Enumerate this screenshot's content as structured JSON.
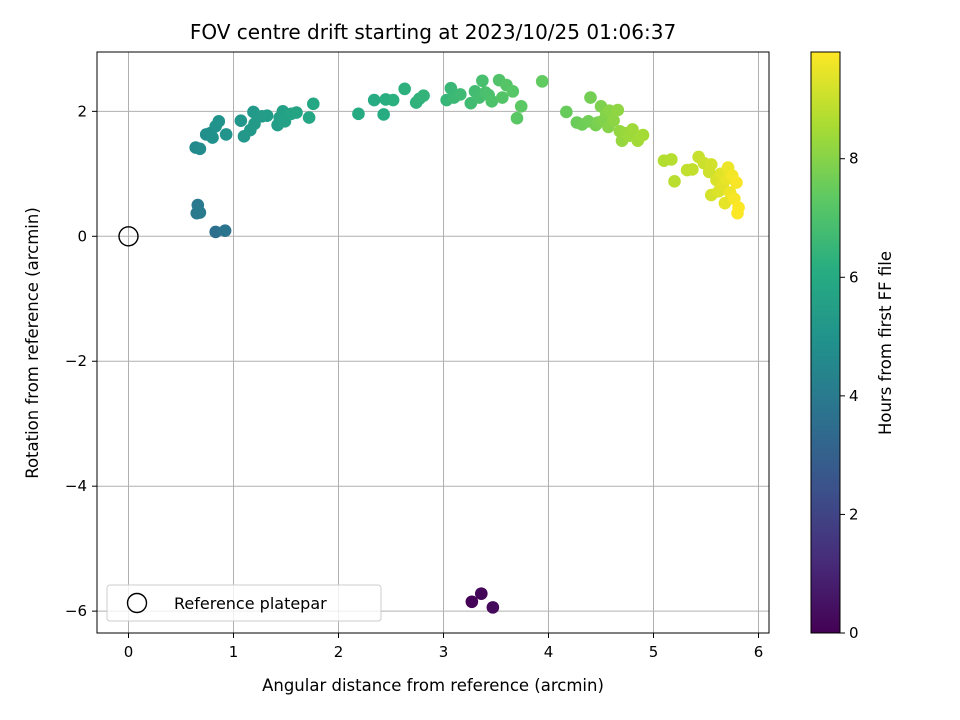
{
  "chart_data": {
    "type": "scatter",
    "title": "FOV centre drift starting at 2023/10/25 01:06:37",
    "xlabel": "Angular distance from reference (arcmin)",
    "ylabel": "Rotation from reference (arcmin)",
    "xlim": [
      -0.3,
      6.1
    ],
    "ylim": [
      -6.35,
      2.95
    ],
    "xticks": [
      0,
      1,
      2,
      3,
      4,
      5,
      6
    ],
    "yticks": [
      -6,
      -4,
      -2,
      0,
      2
    ],
    "xtick_labels": [
      "0",
      "1",
      "2",
      "3",
      "4",
      "5",
      "6"
    ],
    "ytick_labels": [
      "−6",
      "−4",
      "−2",
      "0",
      "2"
    ],
    "grid": true,
    "colormap": "viridis",
    "colorbar": {
      "label": "Hours from first FF file",
      "range": [
        0,
        9.8
      ],
      "ticks": [
        0,
        2,
        4,
        6,
        8
      ],
      "tick_labels": [
        "0",
        "2",
        "4",
        "6",
        "8"
      ]
    },
    "reference": {
      "label": "Reference platepar",
      "x": 0,
      "y": 0
    },
    "legend": {
      "entries": [
        "Reference platepar"
      ],
      "location": "lower-left"
    },
    "series": [
      {
        "points": [
          {
            "x": 3.27,
            "y": -5.85,
            "h": 0.05
          },
          {
            "x": 3.36,
            "y": -5.72,
            "h": 0.15
          },
          {
            "x": 3.47,
            "y": -5.94,
            "h": 0.25
          },
          {
            "x": 0.83,
            "y": 0.07,
            "h": 3.6
          },
          {
            "x": 0.92,
            "y": 0.09,
            "h": 3.75
          },
          {
            "x": 0.65,
            "y": 0.37,
            "h": 3.9
          },
          {
            "x": 0.66,
            "y": 0.5,
            "h": 3.95
          },
          {
            "x": 0.68,
            "y": 0.38,
            "h": 4.0
          },
          {
            "x": 0.64,
            "y": 1.42,
            "h": 4.6
          },
          {
            "x": 0.68,
            "y": 1.4,
            "h": 4.65
          },
          {
            "x": 0.74,
            "y": 1.63,
            "h": 4.8
          },
          {
            "x": 0.78,
            "y": 1.65,
            "h": 4.85
          },
          {
            "x": 0.8,
            "y": 1.58,
            "h": 4.9
          },
          {
            "x": 0.83,
            "y": 1.76,
            "h": 4.95
          },
          {
            "x": 0.86,
            "y": 1.84,
            "h": 5.0
          },
          {
            "x": 0.93,
            "y": 1.63,
            "h": 5.05
          },
          {
            "x": 1.07,
            "y": 1.85,
            "h": 5.1
          },
          {
            "x": 1.1,
            "y": 1.6,
            "h": 5.15
          },
          {
            "x": 1.16,
            "y": 1.7,
            "h": 5.2
          },
          {
            "x": 1.19,
            "y": 1.99,
            "h": 5.25
          },
          {
            "x": 1.2,
            "y": 1.8,
            "h": 5.3
          },
          {
            "x": 1.27,
            "y": 1.92,
            "h": 5.35
          },
          {
            "x": 1.32,
            "y": 1.93,
            "h": 5.4
          },
          {
            "x": 1.42,
            "y": 1.78,
            "h": 5.45
          },
          {
            "x": 1.44,
            "y": 1.9,
            "h": 5.5
          },
          {
            "x": 1.47,
            "y": 2.0,
            "h": 5.55
          },
          {
            "x": 1.49,
            "y": 1.84,
            "h": 5.6
          },
          {
            "x": 1.52,
            "y": 1.95,
            "h": 5.65
          },
          {
            "x": 1.55,
            "y": 1.96,
            "h": 5.7
          },
          {
            "x": 1.6,
            "y": 1.98,
            "h": 5.75
          },
          {
            "x": 1.72,
            "y": 1.9,
            "h": 5.8
          },
          {
            "x": 1.76,
            "y": 2.12,
            "h": 5.85
          },
          {
            "x": 2.19,
            "y": 1.96,
            "h": 6.0
          },
          {
            "x": 2.34,
            "y": 2.18,
            "h": 6.05
          },
          {
            "x": 2.43,
            "y": 1.95,
            "h": 6.1
          },
          {
            "x": 2.45,
            "y": 2.19,
            "h": 6.15
          },
          {
            "x": 2.52,
            "y": 2.18,
            "h": 6.2
          },
          {
            "x": 2.63,
            "y": 2.36,
            "h": 6.25
          },
          {
            "x": 2.74,
            "y": 2.14,
            "h": 6.3
          },
          {
            "x": 2.77,
            "y": 2.2,
            "h": 6.35
          },
          {
            "x": 2.81,
            "y": 2.25,
            "h": 6.4
          },
          {
            "x": 3.03,
            "y": 2.18,
            "h": 6.5
          },
          {
            "x": 3.07,
            "y": 2.37,
            "h": 6.55
          },
          {
            "x": 3.1,
            "y": 2.22,
            "h": 6.6
          },
          {
            "x": 3.16,
            "y": 2.27,
            "h": 6.65
          },
          {
            "x": 3.26,
            "y": 2.13,
            "h": 6.7
          },
          {
            "x": 3.3,
            "y": 2.32,
            "h": 6.75
          },
          {
            "x": 3.34,
            "y": 2.22,
            "h": 6.8
          },
          {
            "x": 3.37,
            "y": 2.49,
            "h": 6.85
          },
          {
            "x": 3.4,
            "y": 2.3,
            "h": 6.9
          },
          {
            "x": 3.43,
            "y": 2.26,
            "h": 6.95
          },
          {
            "x": 3.46,
            "y": 2.16,
            "h": 7.0
          },
          {
            "x": 3.53,
            "y": 2.5,
            "h": 7.05
          },
          {
            "x": 3.56,
            "y": 2.22,
            "h": 7.1
          },
          {
            "x": 3.6,
            "y": 2.42,
            "h": 7.15
          },
          {
            "x": 3.66,
            "y": 2.32,
            "h": 7.2
          },
          {
            "x": 3.7,
            "y": 1.89,
            "h": 7.25
          },
          {
            "x": 3.74,
            "y": 2.08,
            "h": 7.3
          },
          {
            "x": 3.94,
            "y": 2.48,
            "h": 7.4
          },
          {
            "x": 4.17,
            "y": 1.99,
            "h": 7.5
          },
          {
            "x": 4.27,
            "y": 1.82,
            "h": 7.55
          },
          {
            "x": 4.32,
            "y": 1.79,
            "h": 7.6
          },
          {
            "x": 4.38,
            "y": 1.84,
            "h": 7.65
          },
          {
            "x": 4.4,
            "y": 2.22,
            "h": 7.7
          },
          {
            "x": 4.45,
            "y": 1.78,
            "h": 7.75
          },
          {
            "x": 4.47,
            "y": 1.82,
            "h": 7.8
          },
          {
            "x": 4.5,
            "y": 2.08,
            "h": 7.85
          },
          {
            "x": 4.52,
            "y": 1.85,
            "h": 7.9
          },
          {
            "x": 4.55,
            "y": 1.97,
            "h": 7.95
          },
          {
            "x": 4.57,
            "y": 1.75,
            "h": 8.0
          },
          {
            "x": 4.58,
            "y": 2.01,
            "h": 8.05
          },
          {
            "x": 4.62,
            "y": 1.85,
            "h": 8.1
          },
          {
            "x": 4.66,
            "y": 2.02,
            "h": 8.15
          },
          {
            "x": 4.68,
            "y": 1.68,
            "h": 8.2
          },
          {
            "x": 4.7,
            "y": 1.53,
            "h": 8.25
          },
          {
            "x": 4.73,
            "y": 1.65,
            "h": 8.3
          },
          {
            "x": 4.77,
            "y": 1.61,
            "h": 8.35
          },
          {
            "x": 4.8,
            "y": 1.71,
            "h": 8.4
          },
          {
            "x": 4.85,
            "y": 1.53,
            "h": 8.45
          },
          {
            "x": 4.9,
            "y": 1.62,
            "h": 8.5
          },
          {
            "x": 5.1,
            "y": 1.21,
            "h": 8.7
          },
          {
            "x": 5.17,
            "y": 1.23,
            "h": 8.75
          },
          {
            "x": 5.2,
            "y": 0.88,
            "h": 8.8
          },
          {
            "x": 5.32,
            "y": 1.06,
            "h": 8.9
          },
          {
            "x": 5.37,
            "y": 1.07,
            "h": 8.95
          },
          {
            "x": 5.43,
            "y": 1.27,
            "h": 9.0
          },
          {
            "x": 5.48,
            "y": 1.17,
            "h": 9.05
          },
          {
            "x": 5.53,
            "y": 1.03,
            "h": 9.1
          },
          {
            "x": 5.55,
            "y": 1.15,
            "h": 9.15
          },
          {
            "x": 5.55,
            "y": 0.66,
            "h": 9.2
          },
          {
            "x": 5.6,
            "y": 0.9,
            "h": 9.25
          },
          {
            "x": 5.62,
            "y": 0.72,
            "h": 9.3
          },
          {
            "x": 5.64,
            "y": 1.0,
            "h": 9.35
          },
          {
            "x": 5.66,
            "y": 0.83,
            "h": 9.4
          },
          {
            "x": 5.68,
            "y": 0.53,
            "h": 9.45
          },
          {
            "x": 5.7,
            "y": 0.92,
            "h": 9.5
          },
          {
            "x": 5.71,
            "y": 1.1,
            "h": 9.55
          },
          {
            "x": 5.73,
            "y": 0.7,
            "h": 9.6
          },
          {
            "x": 5.75,
            "y": 0.97,
            "h": 9.65
          },
          {
            "x": 5.77,
            "y": 0.6,
            "h": 9.7
          },
          {
            "x": 5.79,
            "y": 0.86,
            "h": 9.72
          },
          {
            "x": 5.8,
            "y": 0.37,
            "h": 9.76
          },
          {
            "x": 5.81,
            "y": 0.46,
            "h": 9.78
          }
        ]
      }
    ]
  }
}
